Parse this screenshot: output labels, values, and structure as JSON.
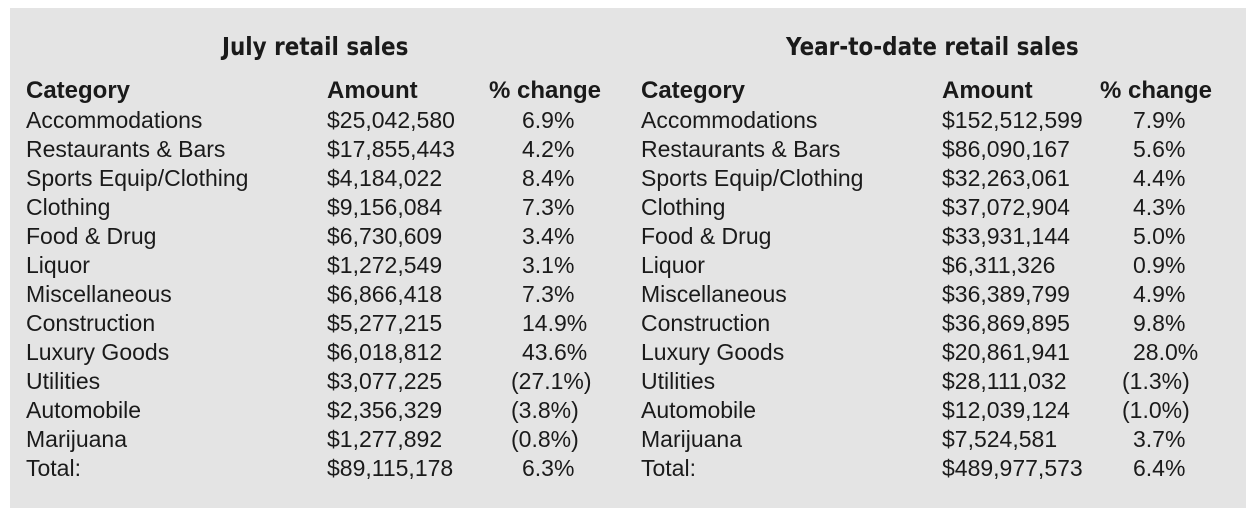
{
  "tables": [
    {
      "title": "July retail sales",
      "headers": [
        "Category",
        "Amount",
        "% change"
      ],
      "rows": [
        [
          "Accommodations",
          "$25,042,580",
          "6.9%"
        ],
        [
          "Restaurants & Bars",
          "$17,855,443",
          "4.2%"
        ],
        [
          "Sports Equip/Clothing",
          "$4,184,022",
          "8.4%"
        ],
        [
          "Clothing",
          "$9,156,084",
          "7.3%"
        ],
        [
          "Food & Drug",
          "$6,730,609",
          "3.4%"
        ],
        [
          "Liquor",
          "$1,272,549",
          "3.1%"
        ],
        [
          "Miscellaneous",
          "$6,866,418",
          "7.3%"
        ],
        [
          "Construction",
          "$5,277,215",
          "14.9%"
        ],
        [
          "Luxury Goods",
          "$6,018,812",
          "43.6%"
        ],
        [
          "Utilities",
          "$3,077,225",
          "(27.1%)"
        ],
        [
          "Automobile",
          "$2,356,329",
          "(3.8%)"
        ],
        [
          "Marijuana",
          "$1,277,892",
          "(0.8%)"
        ],
        [
          "Total:",
          "$89,115,178",
          "6.3%"
        ]
      ]
    },
    {
      "title": "Year-to-date retail sales",
      "headers": [
        "Category",
        "Amount",
        "% change"
      ],
      "rows": [
        [
          "Accommodations",
          "$152,512,599",
          "7.9%"
        ],
        [
          "Restaurants & Bars",
          "$86,090,167",
          "5.6%"
        ],
        [
          "Sports Equip/Clothing",
          "$32,263,061",
          "4.4%"
        ],
        [
          "Clothing",
          "$37,072,904",
          "4.3%"
        ],
        [
          "Food & Drug",
          "$33,931,144",
          "5.0%"
        ],
        [
          "Liquor",
          "$6,311,326",
          "0.9%"
        ],
        [
          "Miscellaneous",
          "$36,389,799",
          "4.9%"
        ],
        [
          "Construction",
          "$36,869,895",
          "9.8%"
        ],
        [
          "Luxury Goods",
          "$20,861,941",
          "28.0%"
        ],
        [
          "Utilities",
          "$28,111,032",
          "(1.3%)"
        ],
        [
          "Automobile",
          "$12,039,124",
          "(1.0%)"
        ],
        [
          "Marijuana",
          "$7,524,581",
          "3.7%"
        ],
        [
          "Total:",
          "$489,977,573",
          "6.4%"
        ]
      ]
    }
  ],
  "chart_data": [
    {
      "type": "table",
      "title": "July retail sales",
      "columns": [
        "Category",
        "Amount",
        "% change"
      ],
      "categories": [
        "Accommodations",
        "Restaurants & Bars",
        "Sports Equip/Clothing",
        "Clothing",
        "Food & Drug",
        "Liquor",
        "Miscellaneous",
        "Construction",
        "Luxury Goods",
        "Utilities",
        "Automobile",
        "Marijuana",
        "Total:"
      ],
      "series": [
        {
          "name": "Amount",
          "values": [
            25042580,
            17855443,
            4184022,
            9156084,
            6730609,
            1272549,
            6866418,
            5277215,
            6018812,
            3077225,
            2356329,
            1277892,
            89115178
          ]
        },
        {
          "name": "% change",
          "values": [
            6.9,
            4.2,
            8.4,
            7.3,
            3.4,
            3.1,
            7.3,
            14.9,
            43.6,
            -27.1,
            -3.8,
            -0.8,
            6.3
          ]
        }
      ]
    },
    {
      "type": "table",
      "title": "Year-to-date retail sales",
      "columns": [
        "Category",
        "Amount",
        "% change"
      ],
      "categories": [
        "Accommodations",
        "Restaurants & Bars",
        "Sports Equip/Clothing",
        "Clothing",
        "Food & Drug",
        "Liquor",
        "Miscellaneous",
        "Construction",
        "Luxury Goods",
        "Utilities",
        "Automobile",
        "Marijuana",
        "Total:"
      ],
      "series": [
        {
          "name": "Amount",
          "values": [
            152512599,
            86090167,
            32263061,
            37072904,
            33931144,
            6311326,
            36389799,
            36869895,
            20861941,
            28111032,
            12039124,
            7524581,
            489977573
          ]
        },
        {
          "name": "% change",
          "values": [
            7.9,
            5.6,
            4.4,
            4.3,
            5.0,
            0.9,
            4.9,
            9.8,
            28.0,
            -1.3,
            -1.0,
            3.7,
            6.4
          ]
        }
      ]
    }
  ]
}
